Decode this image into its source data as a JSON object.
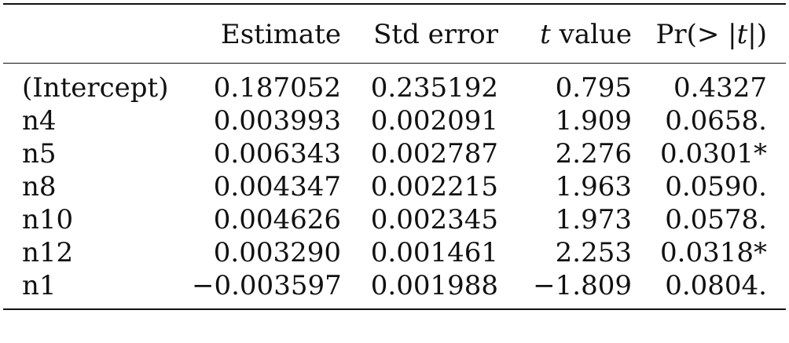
{
  "table": {
    "headers": {
      "estimate": "Estimate",
      "std_error": "Std error",
      "t_value_symbol": "t",
      "t_value_word": "value",
      "pr_prefix": "Pr(> |",
      "pr_symbol": "t",
      "pr_suffix": "|)"
    },
    "rows": [
      {
        "term": "(Intercept)",
        "estimate": "0.187052",
        "std_error": "0.235192",
        "t_value": "0.795",
        "p_value": "0.4327"
      },
      {
        "term": "n4",
        "estimate": "0.003993",
        "std_error": "0.002091",
        "t_value": "1.909",
        "p_value": "0.0658."
      },
      {
        "term": "n5",
        "estimate": "0.006343",
        "std_error": "0.002787",
        "t_value": "2.276",
        "p_value": "0.0301*"
      },
      {
        "term": "n8",
        "estimate": "0.004347",
        "std_error": "0.002215",
        "t_value": "1.963",
        "p_value": "0.0590."
      },
      {
        "term": "n10",
        "estimate": "0.004626",
        "std_error": "0.002345",
        "t_value": "1.973",
        "p_value": "0.0578."
      },
      {
        "term": "n12",
        "estimate": "0.003290",
        "std_error": "0.001461",
        "t_value": "2.253",
        "p_value": "0.0318*"
      },
      {
        "term": "n1",
        "estimate": "−0.003597",
        "std_error": "0.001988",
        "t_value": "−1.809",
        "p_value": "0.0804."
      }
    ]
  }
}
